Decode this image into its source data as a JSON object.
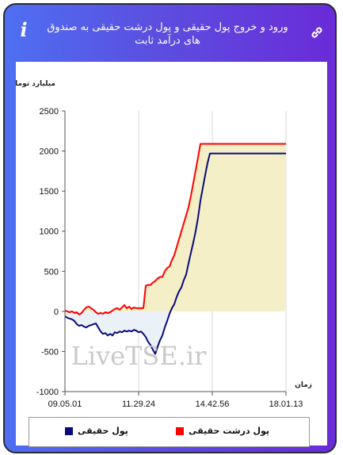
{
  "header": {
    "title": "ورود و خروج پول حقیقی و پول درشت حقیقی به صندوق های درآمد ثابت",
    "info_icon": "info-icon",
    "link_icon": "link-icon"
  },
  "watermark": "LiveTSE.ir",
  "colors": {
    "real_money": "#0a0a7a",
    "big_real_money": "#ff0000",
    "fill_positive": "#f4efc7",
    "fill_negative": "#eaf2f7"
  },
  "chart_data": {
    "type": "line",
    "ylabel": "میلیارد تومان",
    "xlabel": "زمان",
    "ylim": [
      -1000,
      2500
    ],
    "yticks": [
      -1000,
      -500,
      0,
      500,
      1000,
      1500,
      2000,
      2500
    ],
    "xticks": [
      "09.05.01",
      "11.29.24",
      "14.42.56",
      "18.01.13"
    ],
    "grid": "vertical",
    "legend_position": "bottom",
    "series": [
      {
        "name": "پول حقیقی",
        "color": "#0a0a7a",
        "x": [
          0,
          3,
          6,
          9,
          12,
          15,
          18,
          21,
          24,
          27,
          30,
          33,
          36,
          39,
          42,
          45,
          48,
          51,
          54,
          57,
          60,
          63,
          66,
          69,
          72,
          75,
          78,
          81,
          84,
          87,
          90,
          93,
          96,
          99,
          102,
          105,
          108,
          111,
          114,
          117,
          120,
          123,
          126,
          129,
          132,
          135,
          138,
          141,
          144,
          147,
          150,
          153,
          156,
          159,
          162,
          165,
          168,
          171,
          174,
          177,
          180,
          183,
          186,
          189,
          192,
          195,
          198,
          201,
          204,
          207,
          210,
          213,
          216,
          219,
          222,
          225,
          228,
          231,
          234,
          237,
          240,
          243,
          246,
          249,
          252,
          255,
          258,
          261,
          264,
          267,
          270,
          273,
          276,
          279
        ],
        "y": [
          -60,
          -80,
          -90,
          -100,
          -120,
          -160,
          -180,
          -170,
          -190,
          -200,
          -180,
          -170,
          -160,
          -150,
          -200,
          -250,
          -280,
          -270,
          -300,
          -280,
          -300,
          -260,
          -270,
          -250,
          -260,
          -240,
          -250,
          -240,
          -250,
          -230,
          -240,
          -260,
          -250,
          -280,
          -320,
          -380,
          -420,
          -480,
          -530,
          -440,
          -360,
          -300,
          -200,
          -120,
          -30,
          40,
          90,
          180,
          250,
          300,
          390,
          460,
          600,
          730,
          860,
          1000,
          1170,
          1380,
          1540,
          1700,
          1850,
          1970,
          1970,
          1970,
          1970,
          1970,
          1970,
          1970,
          1970,
          1970,
          1970,
          1970,
          1970,
          1970,
          1970,
          1970,
          1970,
          1970,
          1970,
          1970,
          1970,
          1970,
          1970,
          1970,
          1970,
          1970,
          1970,
          1970,
          1970,
          1970,
          1970,
          1970,
          1970,
          1970
        ]
      },
      {
        "name": "پول درشت حقیقی",
        "color": "#ff0000",
        "x": [
          0,
          3,
          6,
          9,
          12,
          15,
          18,
          21,
          24,
          27,
          30,
          33,
          36,
          39,
          42,
          45,
          48,
          51,
          54,
          57,
          60,
          63,
          66,
          69,
          72,
          75,
          78,
          81,
          84,
          87,
          90,
          93,
          96,
          99,
          102,
          105,
          108,
          111,
          114,
          117,
          120,
          123,
          126,
          129,
          132,
          135,
          138,
          141,
          144,
          147,
          150,
          153,
          156,
          159,
          162,
          165,
          168,
          171,
          174,
          177,
          180,
          183,
          186,
          189,
          192,
          195,
          198,
          201,
          204,
          207,
          210,
          213,
          216,
          219,
          222,
          225,
          228,
          231,
          234,
          237,
          240,
          243,
          246,
          249,
          252,
          255,
          258,
          261,
          264,
          267,
          270,
          273,
          276,
          279
        ],
        "y": [
          10,
          0,
          -10,
          0,
          -20,
          -10,
          -40,
          -20,
          20,
          50,
          60,
          40,
          20,
          -10,
          -30,
          -20,
          -30,
          -10,
          -20,
          -10,
          10,
          30,
          40,
          20,
          50,
          80,
          40,
          60,
          30,
          50,
          40,
          40,
          40,
          40,
          320,
          330,
          330,
          360,
          380,
          410,
          430,
          430,
          500,
          540,
          560,
          640,
          700,
          800,
          900,
          1000,
          1100,
          1200,
          1300,
          1440,
          1600,
          1760,
          1920,
          2090,
          2090,
          2090,
          2090,
          2090,
          2090,
          2090,
          2090,
          2090,
          2090,
          2090,
          2090,
          2090,
          2090,
          2090,
          2090,
          2090,
          2090,
          2090,
          2090,
          2090,
          2090,
          2090,
          2090,
          2090,
          2090,
          2090,
          2090,
          2090,
          2090,
          2090,
          2090,
          2090,
          2090,
          2090,
          2090,
          2090
        ]
      }
    ]
  }
}
